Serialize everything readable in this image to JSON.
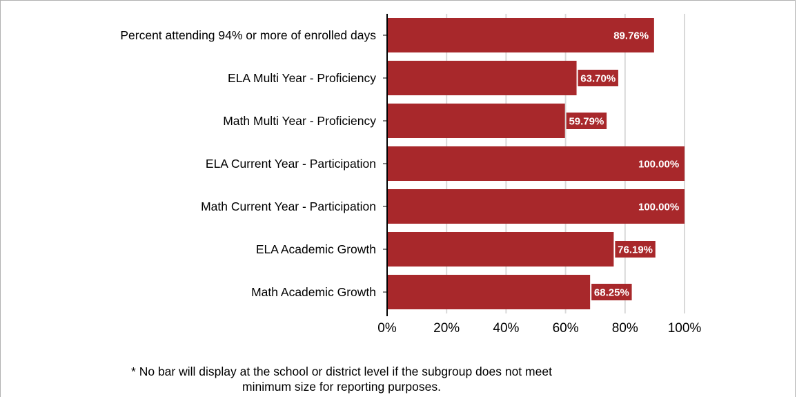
{
  "chart_data": {
    "type": "bar",
    "orientation": "horizontal",
    "categories": [
      "Percent attending 94% or more of enrolled days",
      "ELA Multi Year - Proficiency",
      "Math Multi Year - Proficiency",
      "ELA Current Year - Participation",
      "Math Current Year - Participation",
      "ELA Academic Growth",
      "Math Academic Growth"
    ],
    "values": [
      89.76,
      63.7,
      59.79,
      100.0,
      100.0,
      76.19,
      68.25
    ],
    "data_labels": [
      "89.76%",
      "63.70%",
      "59.79%",
      "100.00%",
      "100.00%",
      "76.19%",
      "68.25%"
    ],
    "xlim": [
      0,
      100
    ],
    "x_ticks": [
      0,
      20,
      40,
      60,
      80,
      100
    ],
    "x_tick_labels": [
      "0%",
      "20%",
      "40%",
      "60%",
      "80%",
      "100%"
    ],
    "grid": "vertical",
    "title": "",
    "xlabel": "",
    "ylabel": "",
    "colors": {
      "bar": "#a8282b",
      "grid": "#d9d9d9",
      "axis": "#000000"
    }
  },
  "footnote": {
    "line1": "* No bar will display at the school or district level if the subgroup does not meet",
    "line2": "minimum size for reporting purposes."
  }
}
